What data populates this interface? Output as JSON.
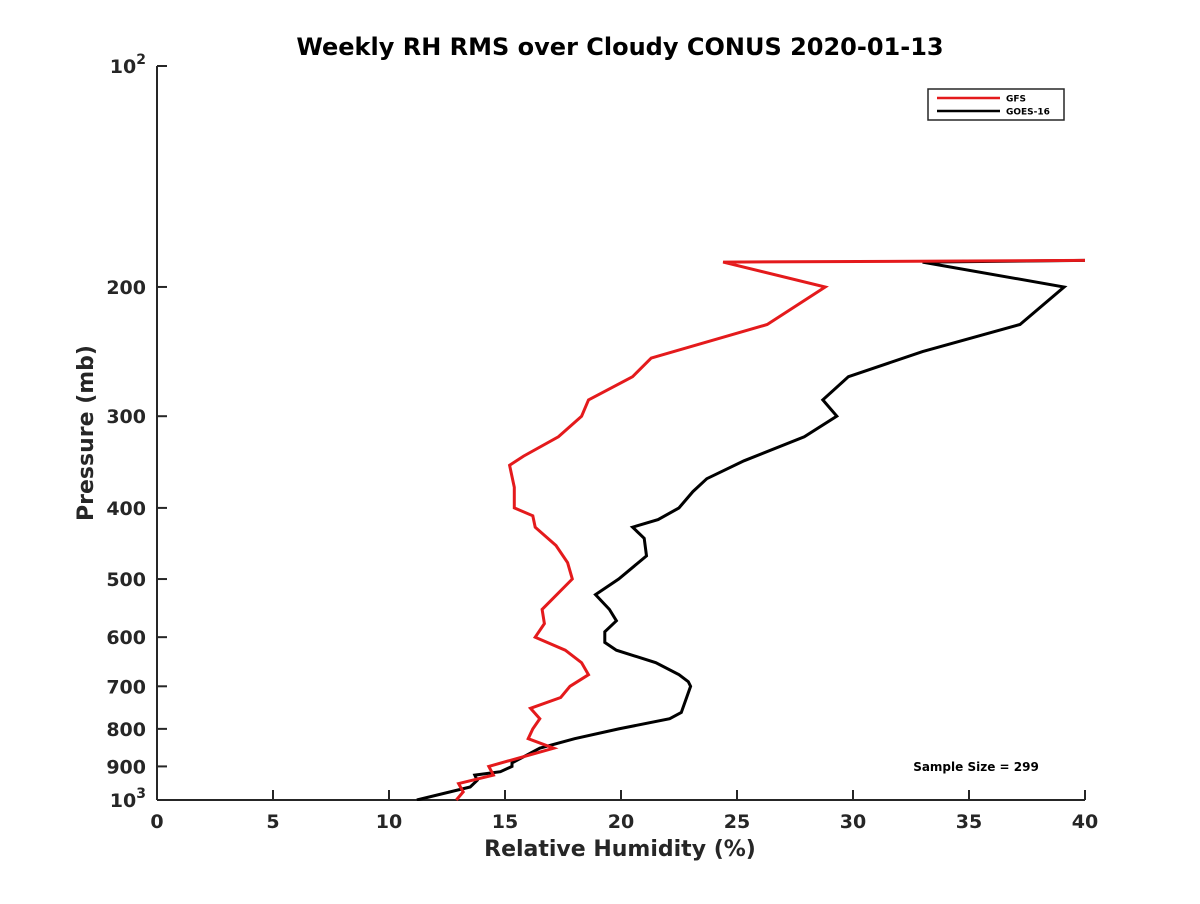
{
  "chart_data": {
    "type": "line",
    "title": "Weekly RH RMS over Cloudy CONUS 2020-01-13",
    "xlabel": "Relative Humidity (%)",
    "ylabel": "Pressure (mb)",
    "xlim": [
      0,
      40
    ],
    "ylim": [
      100,
      1000
    ],
    "y_scale": "log",
    "y_reversed": true,
    "grid": false,
    "legend_position": "top-right",
    "x_ticks": [
      "0",
      "5",
      "10",
      "15",
      "20",
      "25",
      "30",
      "35",
      "40"
    ],
    "y_ticks": [
      {
        "value": 100,
        "base": "10",
        "exp": "2"
      },
      {
        "value": 200,
        "label": "200"
      },
      {
        "value": 300,
        "label": "300"
      },
      {
        "value": 400,
        "label": "400"
      },
      {
        "value": 500,
        "label": "500"
      },
      {
        "value": 600,
        "label": "600"
      },
      {
        "value": 700,
        "label": "700"
      },
      {
        "value": 800,
        "label": "800"
      },
      {
        "value": 900,
        "label": "900"
      },
      {
        "value": 1000,
        "base": "10",
        "exp": "3"
      }
    ],
    "annotation": "Sample Size = 299",
    "series": [
      {
        "name": "GFS",
        "color": "#e41a1c",
        "points": [
          [
            12.9,
            1000
          ],
          [
            13.2,
            975
          ],
          [
            13.0,
            950
          ],
          [
            14.5,
            925
          ],
          [
            14.3,
            900
          ],
          [
            17.1,
            850
          ],
          [
            16.0,
            825
          ],
          [
            16.2,
            800
          ],
          [
            16.5,
            775
          ],
          [
            16.1,
            750
          ],
          [
            17.4,
            725
          ],
          [
            17.8,
            700
          ],
          [
            18.6,
            675
          ],
          [
            18.3,
            650
          ],
          [
            17.6,
            625
          ],
          [
            16.3,
            600
          ],
          [
            16.7,
            575
          ],
          [
            16.6,
            550
          ],
          [
            17.9,
            500
          ],
          [
            17.7,
            475
          ],
          [
            17.2,
            450
          ],
          [
            16.3,
            425
          ],
          [
            16.2,
            410
          ],
          [
            15.4,
            400
          ],
          [
            15.4,
            375
          ],
          [
            15.2,
            350
          ],
          [
            15.8,
            340
          ],
          [
            17.3,
            320
          ],
          [
            18.3,
            300
          ],
          [
            18.6,
            285
          ],
          [
            20.5,
            265
          ],
          [
            21.3,
            250
          ],
          [
            26.3,
            225
          ],
          [
            28.8,
            200
          ],
          [
            24.4,
            185
          ],
          [
            40.0,
            184
          ]
        ]
      },
      {
        "name": "GOES-16",
        "color": "#000000",
        "points": [
          [
            11.2,
            1000
          ],
          [
            13.5,
            960
          ],
          [
            13.8,
            940
          ],
          [
            13.7,
            925
          ],
          [
            14.8,
            915
          ],
          [
            15.3,
            900
          ],
          [
            15.3,
            890
          ],
          [
            15.9,
            870
          ],
          [
            16.5,
            850
          ],
          [
            18.0,
            825
          ],
          [
            19.9,
            800
          ],
          [
            22.1,
            775
          ],
          [
            22.6,
            760
          ],
          [
            23.0,
            700
          ],
          [
            22.9,
            690
          ],
          [
            22.5,
            675
          ],
          [
            21.5,
            650
          ],
          [
            19.8,
            625
          ],
          [
            19.3,
            610
          ],
          [
            19.3,
            590
          ],
          [
            19.8,
            570
          ],
          [
            19.5,
            550
          ],
          [
            18.9,
            525
          ],
          [
            19.9,
            500
          ],
          [
            21.1,
            465
          ],
          [
            21.0,
            440
          ],
          [
            20.5,
            425
          ],
          [
            21.6,
            415
          ],
          [
            22.5,
            400
          ],
          [
            23.1,
            380
          ],
          [
            23.7,
            365
          ],
          [
            25.3,
            345
          ],
          [
            27.9,
            320
          ],
          [
            29.3,
            300
          ],
          [
            28.7,
            285
          ],
          [
            29.8,
            265
          ],
          [
            33.0,
            245
          ],
          [
            37.2,
            225
          ],
          [
            39.1,
            200
          ],
          [
            33.0,
            185
          ],
          [
            40.0,
            184
          ]
        ]
      }
    ]
  }
}
